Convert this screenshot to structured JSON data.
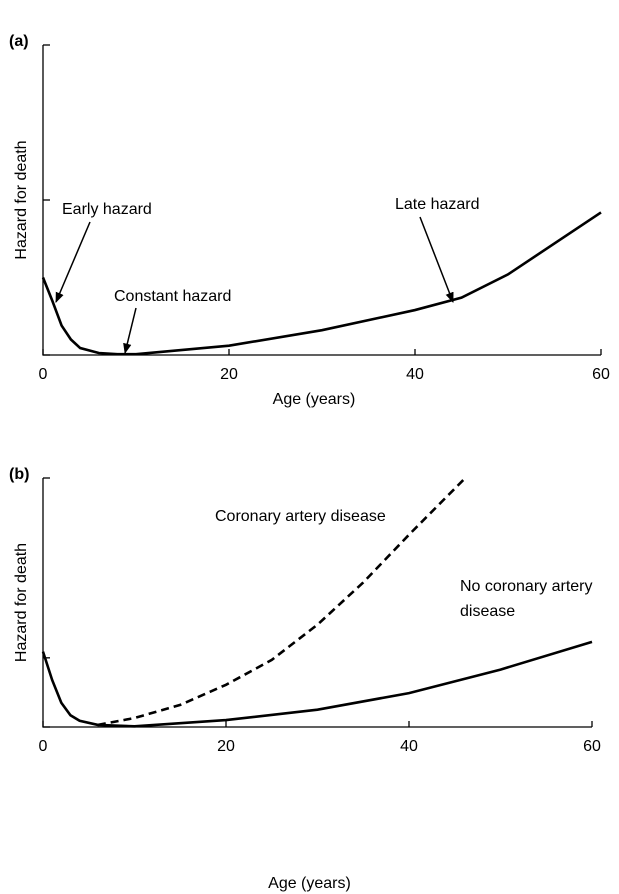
{
  "chart_data": [
    {
      "type": "line",
      "panel_label": "(a)",
      "x_label": "Age (years)",
      "y_label": "Hazard for death",
      "xlim": [
        0,
        60
      ],
      "xticks": [
        0,
        20,
        40,
        60
      ],
      "ylim": [
        0,
        2
      ],
      "yticks": [
        0,
        1,
        2
      ],
      "series": [
        {
          "color": "#000000",
          "linestyle": "solid",
          "x": [
            0,
            1,
            2,
            3,
            4,
            6,
            8,
            10,
            20,
            30,
            40,
            45,
            50,
            60
          ],
          "values": [
            0.5,
            0.35,
            0.19,
            0.1,
            0.045,
            0.013,
            0.005,
            0.005,
            0.06,
            0.16,
            0.29,
            0.37,
            0.52,
            0.92
          ]
        }
      ],
      "annotations": [
        "Early hazard",
        "Constant hazard",
        "Late hazard"
      ]
    },
    {
      "type": "line",
      "panel_label": "(b)",
      "x_label": "Age (years)",
      "y_label": "Hazard for death",
      "xlim": [
        0,
        60
      ],
      "xticks": [
        0,
        20,
        40,
        60
      ],
      "ylim": [
        0,
        3.6
      ],
      "yticks": [
        0,
        1,
        3.6
      ],
      "series": [
        {
          "color": "#000000",
          "linestyle": "dashed",
          "x": [
            6,
            10,
            15,
            20,
            25,
            30,
            35,
            40,
            46
          ],
          "values": [
            0.03,
            0.13,
            0.32,
            0.61,
            0.97,
            1.48,
            2.09,
            2.78,
            3.58
          ]
        },
        {
          "color": "#000000",
          "linestyle": "solid",
          "x": [
            0,
            1,
            2,
            3,
            4,
            6,
            10,
            20,
            30,
            40,
            50,
            60
          ],
          "values": [
            1.09,
            0.68,
            0.35,
            0.17,
            0.09,
            0.03,
            0.01,
            0.1,
            0.25,
            0.49,
            0.83,
            1.23
          ]
        }
      ],
      "annotations": [
        "Coronary artery disease",
        [
          "No coronary artery",
          "disease"
        ]
      ]
    }
  ]
}
